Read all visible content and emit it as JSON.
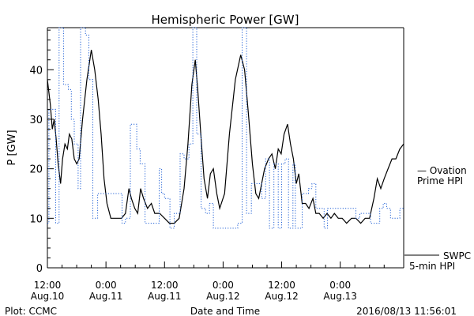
{
  "colors": {
    "axis": "#000000",
    "swpc": "#000000",
    "ovation": "#1f5fd6",
    "background": "#ffffff"
  },
  "footer": {
    "left": "Plot: CCMC",
    "center": "Date and Time",
    "right": "2016/08/13 11:56:01"
  },
  "chart_data": {
    "type": "line",
    "title": "Hemispheric Power [GW]",
    "xlabel": "Date and Time",
    "ylabel": "P [GW]",
    "ylim": [
      0,
      48.5
    ],
    "xlim": [
      0,
      73
    ],
    "x_unit": "hours since 2016-08-10 12:00",
    "y_ticks": [
      0,
      10,
      20,
      30,
      40
    ],
    "x_ticks": [
      {
        "x": 0,
        "line1": "12:00",
        "line2": "Aug.10"
      },
      {
        "x": 12,
        "line1": "0:00",
        "line2": "Aug.11"
      },
      {
        "x": 24,
        "line1": "12:00",
        "line2": "Aug.11"
      },
      {
        "x": 36,
        "line1": "0:00",
        "line2": "Aug.12"
      },
      {
        "x": 48,
        "line1": "12:00",
        "line2": "Aug.12"
      },
      {
        "x": 60,
        "line1": "0:00",
        "line2": "Aug.13"
      }
    ],
    "legend": [
      {
        "series": "ovation",
        "line1": "— Ovation",
        "line2": "Prime HPI"
      },
      {
        "series": "swpc",
        "line1": "SWPC",
        "line2": "5-min HPI"
      }
    ],
    "series": [
      {
        "name": "SWPC 5-min HPI",
        "key": "swpc",
        "style": "solid",
        "points": [
          [
            0,
            38
          ],
          [
            0.6,
            33
          ],
          [
            1,
            28
          ],
          [
            1.4,
            30
          ],
          [
            1.8,
            26
          ],
          [
            2.2,
            21
          ],
          [
            2.7,
            17
          ],
          [
            3.1,
            22
          ],
          [
            3.6,
            25
          ],
          [
            4.1,
            24
          ],
          [
            4.5,
            27
          ],
          [
            5,
            26
          ],
          [
            5.5,
            22
          ],
          [
            6,
            21
          ],
          [
            6.5,
            22
          ],
          [
            7.2,
            30
          ],
          [
            8.1,
            38
          ],
          [
            9,
            44
          ],
          [
            9.7,
            40
          ],
          [
            10.4,
            34
          ],
          [
            11,
            27
          ],
          [
            11.6,
            18
          ],
          [
            12.2,
            13
          ],
          [
            13,
            10
          ],
          [
            14,
            10
          ],
          [
            15.2,
            10
          ],
          [
            16,
            11
          ],
          [
            16.7,
            16
          ],
          [
            17.2,
            14
          ],
          [
            17.9,
            12
          ],
          [
            18.5,
            11
          ],
          [
            19.1,
            16
          ],
          [
            19.7,
            14
          ],
          [
            20.5,
            12
          ],
          [
            21.3,
            13
          ],
          [
            22,
            11
          ],
          [
            23,
            11
          ],
          [
            24,
            10
          ],
          [
            25,
            9
          ],
          [
            26,
            9
          ],
          [
            27,
            10
          ],
          [
            28,
            16
          ],
          [
            28.8,
            25
          ],
          [
            29.6,
            37
          ],
          [
            30.3,
            42
          ],
          [
            30.8,
            36
          ],
          [
            31.5,
            26
          ],
          [
            32.1,
            18
          ],
          [
            32.8,
            14
          ],
          [
            33.4,
            19
          ],
          [
            34,
            20
          ],
          [
            34.7,
            15
          ],
          [
            35.3,
            12
          ],
          [
            36.3,
            15
          ],
          [
            37.3,
            27
          ],
          [
            38.5,
            38
          ],
          [
            39.6,
            43
          ],
          [
            40.4,
            40
          ],
          [
            41.2,
            31
          ],
          [
            42,
            21
          ],
          [
            42.7,
            15
          ],
          [
            43.3,
            14
          ],
          [
            44.5,
            20
          ],
          [
            45.3,
            22
          ],
          [
            46,
            23
          ],
          [
            46.7,
            20
          ],
          [
            47.3,
            24
          ],
          [
            47.9,
            23
          ],
          [
            48.5,
            27
          ],
          [
            49.2,
            29
          ],
          [
            49.8,
            25
          ],
          [
            50.4,
            22
          ],
          [
            51,
            17
          ],
          [
            51.5,
            19
          ],
          [
            52.2,
            13
          ],
          [
            52.9,
            13
          ],
          [
            53.6,
            12
          ],
          [
            54.4,
            14
          ],
          [
            55,
            11
          ],
          [
            55.7,
            11
          ],
          [
            56.5,
            10
          ],
          [
            57.3,
            11
          ],
          [
            58.1,
            10
          ],
          [
            58.8,
            11
          ],
          [
            59.6,
            10
          ],
          [
            60.4,
            10
          ],
          [
            61.3,
            9
          ],
          [
            62.3,
            10
          ],
          [
            63.2,
            10
          ],
          [
            64.2,
            9
          ],
          [
            65.1,
            10
          ],
          [
            66,
            10
          ],
          [
            66.9,
            14
          ],
          [
            67.6,
            18
          ],
          [
            68.3,
            16
          ],
          [
            69,
            18
          ],
          [
            69.8,
            20
          ],
          [
            70.6,
            22
          ],
          [
            71.4,
            22
          ],
          [
            72.2,
            24
          ],
          [
            73,
            25
          ]
        ]
      },
      {
        "name": "Ovation Prime HPI",
        "key": "ovation",
        "style": "dotted-step",
        "points": [
          [
            0,
            9
          ],
          [
            0.3,
            32
          ],
          [
            1.7,
            9
          ],
          [
            2.4,
            48.5
          ],
          [
            3.3,
            37
          ],
          [
            4.3,
            36
          ],
          [
            4.9,
            30
          ],
          [
            5.5,
            25
          ],
          [
            6.3,
            16
          ],
          [
            6.8,
            48.5
          ],
          [
            7.8,
            47
          ],
          [
            8.5,
            38
          ],
          [
            9.3,
            10
          ],
          [
            10.3,
            15
          ],
          [
            12,
            15
          ],
          [
            14.5,
            15
          ],
          [
            15.3,
            9
          ],
          [
            16,
            10
          ],
          [
            17,
            29
          ],
          [
            17.8,
            29
          ],
          [
            18.3,
            24
          ],
          [
            19,
            21
          ],
          [
            20,
            9
          ],
          [
            21.2,
            9
          ],
          [
            22,
            9
          ],
          [
            22.9,
            20
          ],
          [
            23.4,
            15
          ],
          [
            24,
            14
          ],
          [
            25.1,
            8
          ],
          [
            26,
            11
          ],
          [
            27.2,
            23
          ],
          [
            28,
            22
          ],
          [
            29,
            25
          ],
          [
            29.8,
            48.5
          ],
          [
            30.6,
            27
          ],
          [
            31.5,
            12
          ],
          [
            32.4,
            11
          ],
          [
            33.2,
            13
          ],
          [
            34,
            8
          ],
          [
            35,
            8
          ],
          [
            38,
            8
          ],
          [
            39,
            9
          ],
          [
            39.9,
            48.5
          ],
          [
            40.8,
            11
          ],
          [
            41.8,
            17
          ],
          [
            43.2,
            17
          ],
          [
            43.9,
            14
          ],
          [
            44.7,
            22
          ],
          [
            45.5,
            8
          ],
          [
            46.4,
            21
          ],
          [
            47.3,
            8
          ],
          [
            48,
            21
          ],
          [
            48.7,
            22
          ],
          [
            49.4,
            8
          ],
          [
            50.3,
            21
          ],
          [
            50.8,
            8
          ],
          [
            52.2,
            15
          ],
          [
            52.9,
            15
          ],
          [
            53.5,
            16
          ],
          [
            54.2,
            17
          ],
          [
            55,
            12
          ],
          [
            55.8,
            12
          ],
          [
            56.7,
            8
          ],
          [
            57.4,
            12
          ],
          [
            62.5,
            12
          ],
          [
            63.2,
            10
          ],
          [
            64,
            11
          ],
          [
            65.4,
            11
          ],
          [
            66.2,
            9
          ],
          [
            67.3,
            9
          ],
          [
            68.1,
            12
          ],
          [
            68.8,
            13
          ],
          [
            69.5,
            12
          ],
          [
            70.3,
            10
          ],
          [
            71.2,
            10
          ],
          [
            72.2,
            12
          ],
          [
            73,
            12
          ]
        ]
      }
    ]
  }
}
